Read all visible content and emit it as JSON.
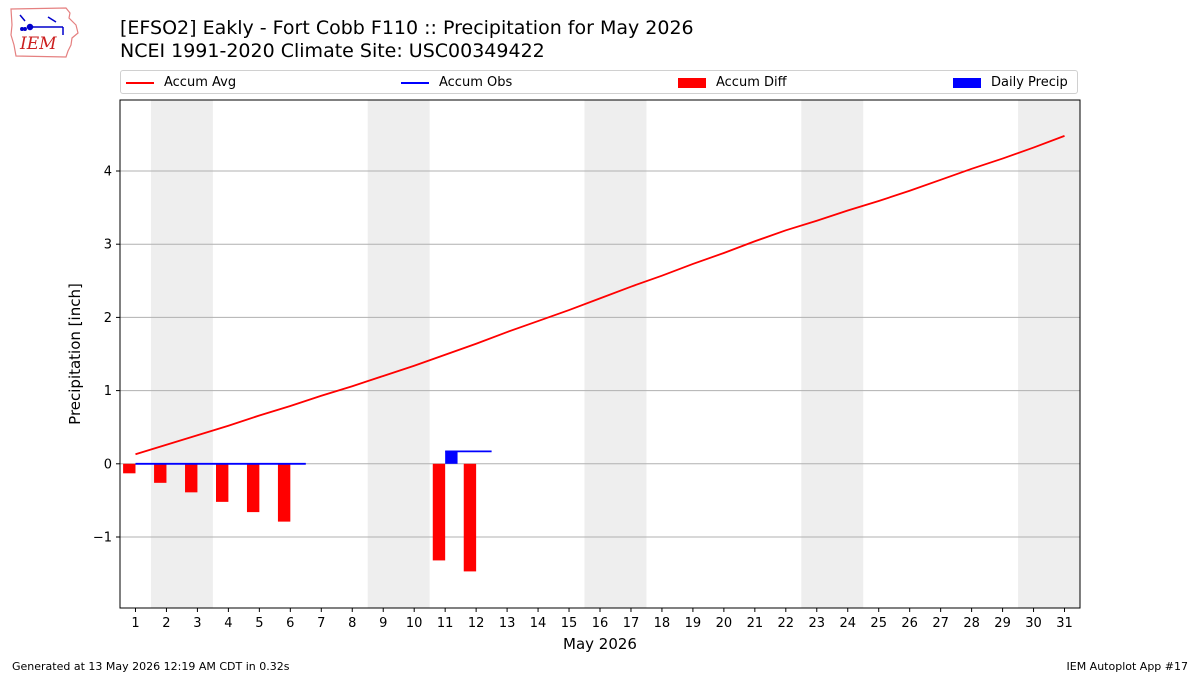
{
  "logo": {
    "text": "IEM",
    "icon": "iem-iowa-logo-icon"
  },
  "title_line1": "[EFSO2] Eakly - Fort Cobb F110 :: Precipitation for May 2026",
  "title_line2": "NCEI 1991-2020 Climate Site: USC00349422",
  "footer_left": "Generated at 13 May 2026 12:19 AM CDT in 0.32s",
  "footer_right": "IEM Autoplot App #17",
  "colors": {
    "avg": "#ff0000",
    "obs": "#0000ff",
    "diff": "#ff0000",
    "daily": "#0000ff",
    "weekend": "#eeeeee",
    "grid": "#b0b0b0"
  },
  "chart_data": {
    "type": "bar",
    "xlabel": "May 2026",
    "ylabel": "Precipitation [inch]",
    "xlim": [
      0.5,
      31.5
    ],
    "ylim": [
      -1.97,
      4.97
    ],
    "xticks": [
      1,
      2,
      3,
      4,
      5,
      6,
      7,
      8,
      9,
      10,
      11,
      12,
      13,
      14,
      15,
      16,
      17,
      18,
      19,
      20,
      21,
      22,
      23,
      24,
      25,
      26,
      27,
      28,
      29,
      30,
      31
    ],
    "yticks": [
      -1,
      0,
      1,
      2,
      3,
      4
    ],
    "ytick_labels": [
      "−1",
      "0",
      "1",
      "2",
      "3",
      "4"
    ],
    "grid": "horizontal",
    "legend_position": "top",
    "weekend_bands": [
      [
        1.5,
        3.5
      ],
      [
        8.5,
        10.5
      ],
      [
        15.5,
        17.5
      ],
      [
        22.5,
        24.5
      ],
      [
        29.5,
        31.5
      ]
    ],
    "series": [
      {
        "name": "Accum Avg",
        "kind": "line",
        "x": [
          1,
          2,
          3,
          4,
          5,
          6,
          7,
          8,
          9,
          10,
          11,
          12,
          13,
          14,
          15,
          16,
          17,
          18,
          19,
          20,
          21,
          22,
          23,
          24,
          25,
          26,
          27,
          28,
          29,
          30,
          31
        ],
        "values": [
          0.13,
          0.26,
          0.39,
          0.52,
          0.66,
          0.79,
          0.93,
          1.06,
          1.2,
          1.34,
          1.49,
          1.64,
          1.8,
          1.95,
          2.1,
          2.26,
          2.42,
          2.57,
          2.73,
          2.88,
          3.04,
          3.19,
          3.32,
          3.46,
          3.59,
          3.73,
          3.88,
          4.03,
          4.17,
          4.32,
          4.48
        ]
      },
      {
        "name": "Accum Obs",
        "kind": "step",
        "x": [
          1,
          2,
          3,
          4,
          5,
          6,
          11,
          12
        ],
        "values": [
          0,
          0,
          0,
          0,
          0,
          0,
          0.17,
          0.17
        ]
      },
      {
        "name": "Accum Diff",
        "kind": "bar",
        "offset": -0.2,
        "width": 0.4,
        "x": [
          1,
          2,
          3,
          4,
          5,
          6,
          11,
          12
        ],
        "values": [
          -0.13,
          -0.26,
          -0.39,
          -0.52,
          -0.66,
          -0.79,
          -1.32,
          -1.47
        ]
      },
      {
        "name": "Daily Precip",
        "kind": "bar",
        "offset": 0.2,
        "width": 0.4,
        "x": [
          11
        ],
        "values": [
          0.17
        ]
      }
    ]
  }
}
